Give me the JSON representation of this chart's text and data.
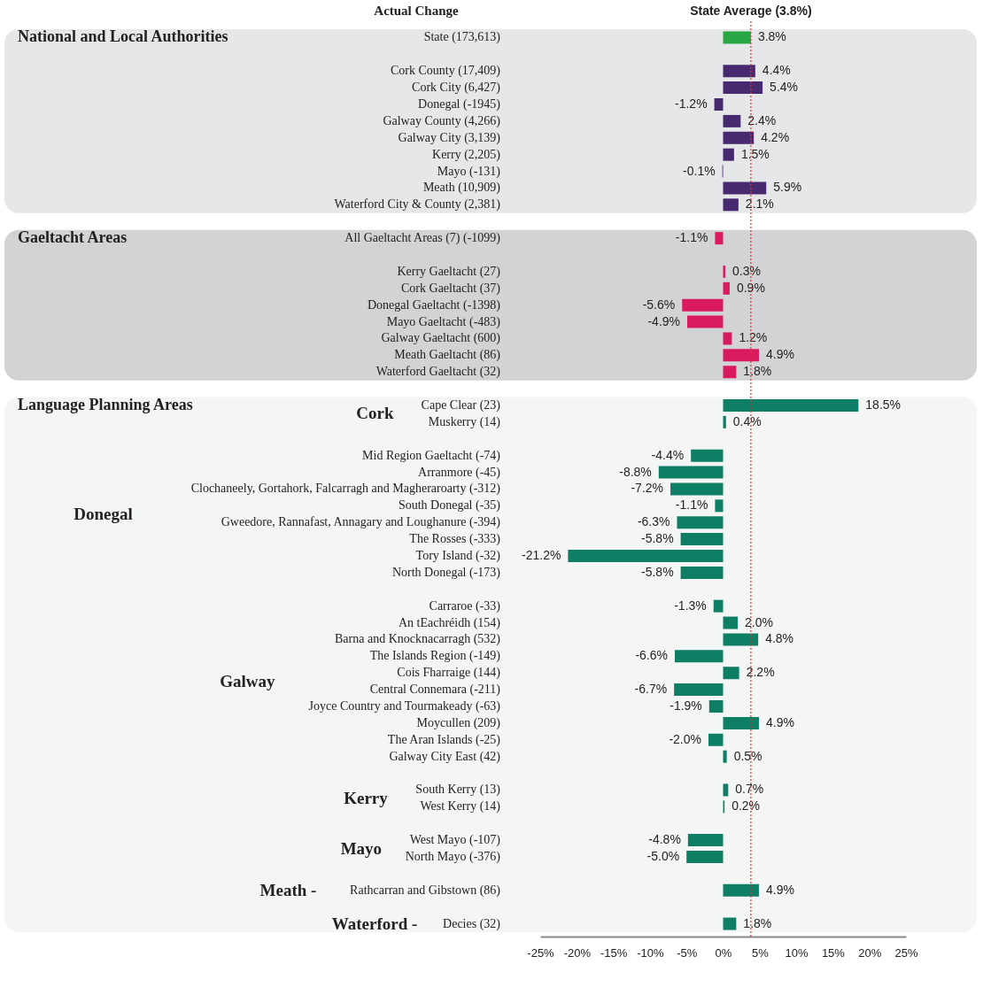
{
  "chart_data": {
    "type": "bar",
    "orientation": "horizontal",
    "categories": [
      "State (173,613)",
      null,
      "Cork County (17,409)",
      "Cork City (6,427)",
      "Donegal (-1945)",
      "Galway County (4,266)",
      "Galway City (3,139)",
      "Kerry (2,205)",
      "Mayo (-131)",
      "Meath (10,909)",
      "Waterford City & County (2,381)",
      null,
      "All Gaeltacht Areas (7) (-1099)",
      null,
      "Kerry Gaeltacht (27)",
      "Cork Gaeltacht (37)",
      "Donegal Gaeltacht (-1398)",
      "Mayo Gaeltacht (-483)",
      "Galway Gaeltacht (600)",
      "Meath Gaeltacht (86)",
      "Waterford Gaeltacht (32)",
      null,
      "Cape Clear (23)",
      "Muskerry (14)",
      null,
      "Mid Region Gaeltacht (-74)",
      "Arranmore (-45)",
      "Clochaneely, Gortahork, Falcarragh and Magheraroarty (-312)",
      "South Donegal (-35)",
      "Gweedore, Rannafast, Annagary and Loughanure (-394)",
      "The Rosses (-333)",
      "Tory Island (-32)",
      "North Donegal (-173)",
      null,
      "Carraroe (-33)",
      "An tEachréidh (154)",
      "Barna and Knocknacarragh (532)",
      "The Islands Region (-149)",
      "Cois Fharraige (144)",
      "Central Connemara (-211)",
      "Joyce Country and Tourmakeady (-63)",
      "Moycullen (209)",
      "The Aran Islands (-25)",
      "Galway City East (42)",
      null,
      "South Kerry (13)",
      "West Kerry (14)",
      null,
      "West Mayo (-107)",
      "North Mayo (-376)",
      null,
      "Rathcarran and Gibstown (86)",
      null,
      "Decies (32)"
    ],
    "values": [
      3.8,
      null,
      4.4,
      5.4,
      -1.2,
      2.4,
      4.2,
      1.5,
      -0.1,
      5.9,
      2.1,
      null,
      -1.1,
      null,
      0.3,
      0.9,
      -5.6,
      -4.9,
      1.2,
      4.9,
      1.8,
      null,
      18.5,
      0.4,
      null,
      -4.4,
      -8.8,
      -7.2,
      -1.1,
      -6.3,
      -5.8,
      -21.2,
      -5.8,
      null,
      -1.3,
      2.0,
      4.8,
      -6.6,
      2.2,
      -6.7,
      -1.9,
      4.9,
      -2.0,
      0.5,
      null,
      0.7,
      0.2,
      null,
      -4.8,
      -5.0,
      null,
      4.9,
      null,
      1.8
    ],
    "value_labels": [
      "3.8%",
      null,
      "4.4%",
      "5.4%",
      "-1.2%",
      "2.4%",
      "4.2%",
      "1.5%",
      "-0.1%",
      "5.9%",
      "2.1%",
      null,
      "-1.1%",
      null,
      "0.3%",
      "0.9%",
      "-5.6%",
      "-4.9%",
      "1.2%",
      "4.9%",
      "1.8%",
      null,
      "18.5%",
      "0.4%",
      null,
      "-4.4%",
      "-8.8%",
      "-7.2%",
      "-1.1%",
      "-6.3%",
      "-5.8%",
      "-21.2%",
      "-5.8%",
      null,
      "-1.3%",
      "2.0%",
      "4.8%",
      "-6.6%",
      "2.2%",
      "-6.7%",
      "-1.9%",
      "4.9%",
      "-2.0%",
      "0.5%",
      null,
      "0.7%",
      "0.2%",
      null,
      "-4.8%",
      "-5.0%",
      null,
      "4.9%",
      null,
      "1.8%"
    ],
    "colors": [
      "#28a745",
      null,
      "#46296f",
      "#46296f",
      "#46296f",
      "#46296f",
      "#46296f",
      "#46296f",
      "#46296f",
      "#46296f",
      "#46296f",
      null,
      "#da1a5e",
      null,
      "#da1a5e",
      "#da1a5e",
      "#da1a5e",
      "#da1a5e",
      "#da1a5e",
      "#da1a5e",
      "#da1a5e",
      null,
      "#0e7f65",
      "#0e7f65",
      null,
      "#0e7f65",
      "#0e7f65",
      "#0e7f65",
      "#0e7f65",
      "#0e7f65",
      "#0e7f65",
      "#0e7f65",
      "#0e7f65",
      null,
      "#0e7f65",
      "#0e7f65",
      "#0e7f65",
      "#0e7f65",
      "#0e7f65",
      "#0e7f65",
      "#0e7f65",
      "#0e7f65",
      "#0e7f65",
      "#0e7f65",
      null,
      "#0e7f65",
      "#0e7f65",
      null,
      "#0e7f65",
      "#0e7f65",
      null,
      "#0e7f65",
      null,
      "#0e7f65"
    ],
    "xlim": [
      -25,
      25
    ],
    "xticks": [
      {
        "value": -25,
        "label": "-25%"
      },
      {
        "value": -20,
        "label": "-20%"
      },
      {
        "value": -15,
        "label": "-15%"
      },
      {
        "value": -10,
        "label": "-10%"
      },
      {
        "value": -5,
        "label": "-5%"
      },
      {
        "value": 0,
        "label": "0%"
      },
      {
        "value": 5,
        "label": "5%"
      },
      {
        "value": 10,
        "label": "10%"
      },
      {
        "value": 15,
        "label": "15%"
      },
      {
        "value": 20,
        "label": "20%"
      },
      {
        "value": 25,
        "label": "25%"
      }
    ],
    "ref_lines": [
      {
        "axis": "x",
        "value": 3.8,
        "label": "State Average (3.8%)",
        "color": "#e8302a",
        "line_style": "dotted"
      }
    ],
    "bands": [
      {
        "axis": "y",
        "from": "State (173,613)",
        "to": "Waterford City & County (2,381)",
        "label": "National and Local Authorities",
        "color": "#e6e7e9"
      },
      {
        "axis": "y",
        "from": "All Gaeltacht Areas (7) (-1099)",
        "to": "Waterford Gaeltacht (32)",
        "label": "Gaeltacht Areas",
        "color": "#d2d3d5"
      },
      {
        "axis": "y",
        "from": "Cape Clear (23)",
        "to": "Decies (32)",
        "label": "Language Planning Areas",
        "color": "#f4f6f5"
      }
    ],
    "annotations": [
      "Actual Change",
      "Cork",
      "Donegal",
      "Galway",
      "Kerry",
      "Mayo",
      "Meath -",
      "Waterford -"
    ]
  }
}
